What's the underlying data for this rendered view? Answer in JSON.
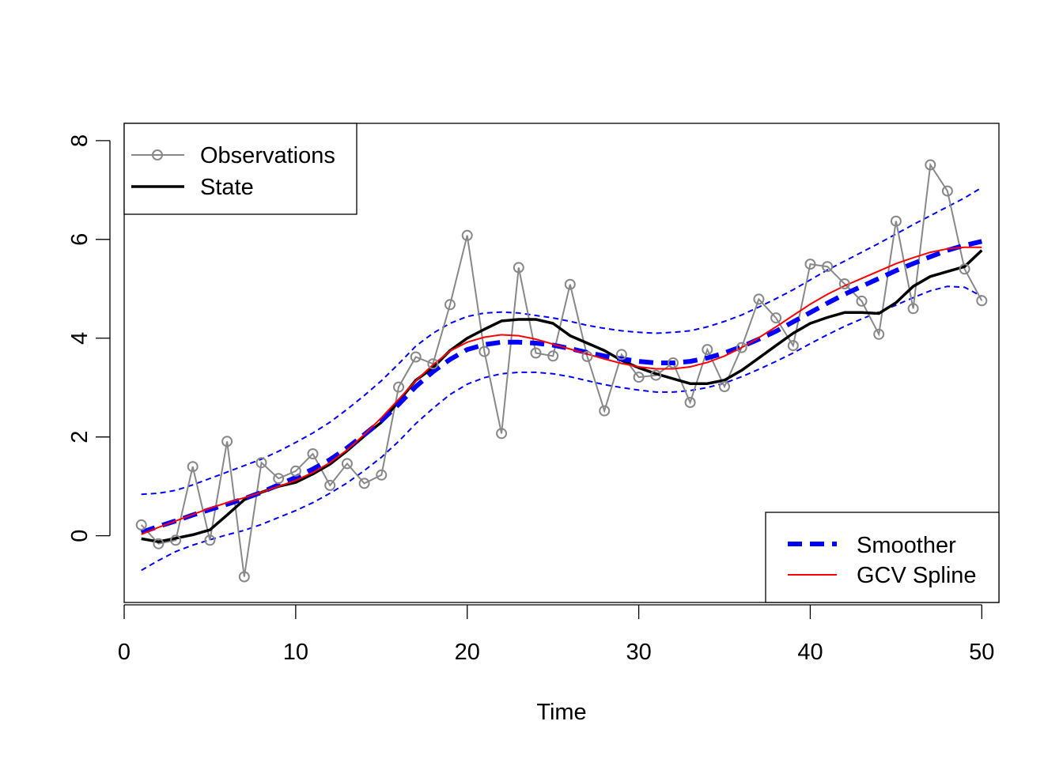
{
  "chart_data": {
    "type": "line",
    "title": "",
    "xlabel": "Time",
    "ylabel": "",
    "xlim": [
      0,
      51
    ],
    "ylim": [
      -1.35,
      8.35
    ],
    "x_ticks": [
      0,
      10,
      20,
      30,
      40,
      50
    ],
    "y_ticks": [
      0,
      2,
      4,
      6,
      8
    ],
    "grid": false,
    "x": [
      1,
      2,
      3,
      4,
      5,
      6,
      7,
      8,
      9,
      10,
      11,
      12,
      13,
      14,
      15,
      16,
      17,
      18,
      19,
      20,
      21,
      22,
      23,
      24,
      25,
      26,
      27,
      28,
      29,
      30,
      31,
      32,
      33,
      34,
      35,
      36,
      37,
      38,
      39,
      40,
      41,
      42,
      43,
      44,
      45,
      46,
      47,
      48,
      49,
      50
    ],
    "series": [
      {
        "name": "Observations",
        "color": "#888888",
        "values": [
          0.22,
          -0.16,
          -0.09,
          1.4,
          -0.09,
          1.91,
          -0.83,
          1.48,
          1.16,
          1.31,
          1.66,
          1.02,
          1.46,
          1.06,
          1.23,
          3.01,
          3.62,
          3.48,
          4.68,
          6.08,
          3.73,
          2.07,
          5.43,
          3.7,
          3.64,
          5.09,
          3.63,
          2.53,
          3.67,
          3.21,
          3.25,
          3.5,
          2.7,
          3.77,
          3.02,
          3.81,
          4.79,
          4.41,
          3.85,
          5.5,
          5.45,
          5.1,
          4.75,
          4.08,
          6.37,
          4.6,
          7.51,
          6.98,
          5.4,
          4.76
        ]
      },
      {
        "name": "State",
        "color": "#000000",
        "values": [
          -0.06,
          -0.12,
          -0.05,
          0.02,
          0.12,
          0.42,
          0.73,
          0.88,
          1.0,
          1.08,
          1.25,
          1.45,
          1.72,
          2.02,
          2.3,
          2.72,
          3.15,
          3.4,
          3.75,
          4.0,
          4.18,
          4.35,
          4.38,
          4.38,
          4.3,
          4.05,
          3.9,
          3.75,
          3.55,
          3.4,
          3.28,
          3.18,
          3.08,
          3.08,
          3.15,
          3.35,
          3.6,
          3.85,
          4.1,
          4.3,
          4.42,
          4.52,
          4.52,
          4.5,
          4.72,
          5.05,
          5.25,
          5.35,
          5.45,
          5.78
        ]
      },
      {
        "name": "Smoother",
        "color": "#0000ff",
        "values": [
          0.07,
          0.19,
          0.3,
          0.42,
          0.53,
          0.64,
          0.75,
          0.88,
          1.03,
          1.18,
          1.35,
          1.54,
          1.78,
          2.05,
          2.33,
          2.66,
          3.02,
          3.32,
          3.57,
          3.77,
          3.87,
          3.92,
          3.92,
          3.9,
          3.86,
          3.79,
          3.71,
          3.64,
          3.58,
          3.53,
          3.5,
          3.5,
          3.53,
          3.6,
          3.7,
          3.83,
          3.98,
          4.14,
          4.33,
          4.52,
          4.71,
          4.89,
          5.05,
          5.21,
          5.37,
          5.51,
          5.65,
          5.78,
          5.88,
          5.96
        ]
      },
      {
        "name": "GCV Spline",
        "color": "#ff0000",
        "values": [
          0.03,
          0.17,
          0.3,
          0.43,
          0.56,
          0.67,
          0.77,
          0.88,
          1.0,
          1.12,
          1.28,
          1.48,
          1.74,
          2.05,
          2.39,
          2.76,
          3.14,
          3.46,
          3.74,
          3.92,
          4.02,
          4.07,
          4.05,
          3.98,
          3.88,
          3.78,
          3.68,
          3.58,
          3.49,
          3.42,
          3.38,
          3.38,
          3.42,
          3.51,
          3.64,
          3.81,
          4.01,
          4.23,
          4.46,
          4.69,
          4.89,
          5.06,
          5.21,
          5.36,
          5.51,
          5.63,
          5.74,
          5.81,
          5.84,
          5.84
        ]
      },
      {
        "name": "",
        "color": "#0000ff",
        "values": [
          0.84,
          0.86,
          0.92,
          1.03,
          1.16,
          1.29,
          1.42,
          1.55,
          1.71,
          1.89,
          2.08,
          2.3,
          2.56,
          2.84,
          3.14,
          3.48,
          3.84,
          4.1,
          4.3,
          4.44,
          4.51,
          4.53,
          4.51,
          4.46,
          4.41,
          4.34,
          4.26,
          4.2,
          4.15,
          4.12,
          4.1,
          4.12,
          4.15,
          4.23,
          4.34,
          4.47,
          4.63,
          4.8,
          4.98,
          5.18,
          5.38,
          5.56,
          5.74,
          5.92,
          6.11,
          6.3,
          6.48,
          6.66,
          6.84,
          7.05
        ]
      },
      {
        "name": "",
        "color": "#0000ff",
        "values": [
          -0.7,
          -0.5,
          -0.32,
          -0.19,
          -0.08,
          0.02,
          0.11,
          0.23,
          0.37,
          0.51,
          0.67,
          0.86,
          1.07,
          1.32,
          1.59,
          1.91,
          2.27,
          2.58,
          2.86,
          3.07,
          3.2,
          3.28,
          3.31,
          3.31,
          3.28,
          3.22,
          3.14,
          3.06,
          3.0,
          2.95,
          2.91,
          2.91,
          2.94,
          3.0,
          3.09,
          3.22,
          3.37,
          3.53,
          3.7,
          3.89,
          4.07,
          4.24,
          4.39,
          4.53,
          4.67,
          4.82,
          4.96,
          5.05,
          5.03,
          4.85
        ]
      }
    ],
    "legends": [
      {
        "position": "top-left",
        "entries": [
          "Observations",
          "State"
        ]
      },
      {
        "position": "bottom-right",
        "entries": [
          "Smoother",
          "GCV Spline"
        ]
      }
    ]
  }
}
